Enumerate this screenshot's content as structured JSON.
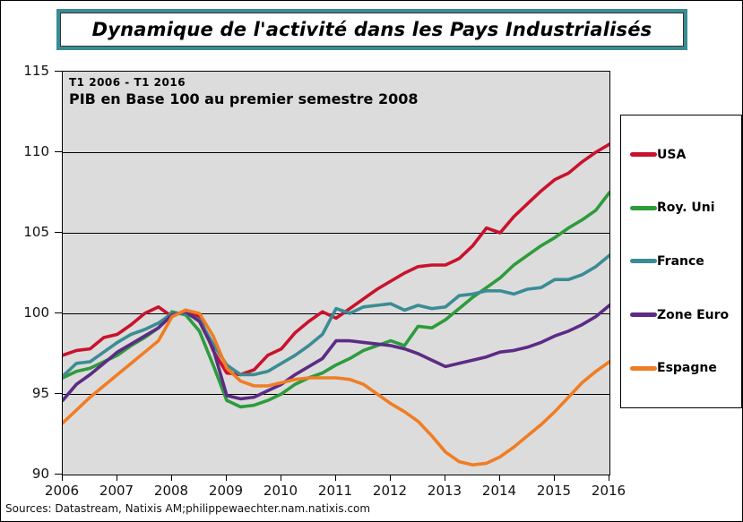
{
  "header": {
    "title": "Dynamique de l'activité dans les Pays Industrialisés"
  },
  "annotation": {
    "line1": "T1 2006 - T1 2016",
    "line2": "PIB en Base 100 au premier semestre 2008"
  },
  "source": "Sources: Datastream, Natixis AM;philippewaechter.nam.natixis.com",
  "colors": {
    "plot_background": "#dcdcdc",
    "gridline": "#000000",
    "title_border": "#3a8c94"
  },
  "chart_data": {
    "type": "line",
    "title": "Dynamique de l'activité dans les Pays Industrialisés",
    "subtitle": "PIB en Base 100 au premier semestre 2008",
    "period": "T1 2006 - T1 2016",
    "x_start": 2006.0,
    "x_step": 0.25,
    "xlim": [
      2006,
      2016
    ],
    "ylim": [
      90,
      115
    ],
    "xticks": [
      2006,
      2007,
      2008,
      2009,
      2010,
      2011,
      2012,
      2013,
      2014,
      2015,
      2016
    ],
    "yticks": [
      90,
      95,
      100,
      105,
      110,
      115
    ],
    "grid_values": [
      95,
      100,
      105,
      110
    ],
    "grid": "horizontal",
    "legend_position": "right",
    "series": [
      {
        "name": "USA",
        "color": "#c9122d",
        "values": [
          97.4,
          97.7,
          97.8,
          98.5,
          98.7,
          99.3,
          100.0,
          100.4,
          99.8,
          100.2,
          99.8,
          97.7,
          96.3,
          96.2,
          96.5,
          97.4,
          97.8,
          98.8,
          99.5,
          100.1,
          99.7,
          100.3,
          100.9,
          101.5,
          102.0,
          102.5,
          102.9,
          103.0,
          103.0,
          103.4,
          104.2,
          105.3,
          105.0,
          106.0,
          106.8,
          107.6,
          108.3,
          108.7,
          109.4,
          110.0,
          110.5
        ]
      },
      {
        "name": "Roy. Uni",
        "color": "#2e9b3c",
        "values": [
          96.0,
          96.4,
          96.6,
          97.0,
          97.4,
          98.0,
          98.5,
          99.1,
          100.1,
          99.9,
          98.9,
          96.8,
          94.6,
          94.2,
          94.3,
          94.6,
          95.0,
          95.6,
          96.0,
          96.3,
          96.8,
          97.2,
          97.7,
          98.0,
          98.3,
          98.0,
          99.2,
          99.1,
          99.6,
          100.3,
          101.0,
          101.6,
          102.2,
          103.0,
          103.6,
          104.2,
          104.7,
          105.3,
          105.8,
          106.4,
          107.5
        ]
      },
      {
        "name": "France",
        "color": "#3b8c94",
        "values": [
          96.1,
          96.9,
          97.0,
          97.6,
          98.2,
          98.7,
          99.0,
          99.4,
          100.0,
          100.0,
          99.6,
          98.1,
          96.8,
          96.2,
          96.2,
          96.4,
          96.9,
          97.4,
          98.0,
          98.7,
          100.3,
          100.0,
          100.4,
          100.5,
          100.6,
          100.2,
          100.5,
          100.3,
          100.4,
          101.1,
          101.2,
          101.4,
          101.4,
          101.2,
          101.5,
          101.6,
          102.1,
          102.1,
          102.4,
          102.9,
          103.6
        ]
      },
      {
        "name": "Zone Euro",
        "color": "#5c2b85",
        "values": [
          94.6,
          95.6,
          96.2,
          96.9,
          97.6,
          98.1,
          98.6,
          99.1,
          99.9,
          100.1,
          99.5,
          97.8,
          94.9,
          94.7,
          94.8,
          95.2,
          95.6,
          96.2,
          96.7,
          97.2,
          98.3,
          98.3,
          98.2,
          98.1,
          98.0,
          97.8,
          97.5,
          97.1,
          96.7,
          96.9,
          97.1,
          97.3,
          97.6,
          97.7,
          97.9,
          98.2,
          98.6,
          98.9,
          99.3,
          99.8,
          100.5
        ]
      },
      {
        "name": "Espagne",
        "color": "#f07d24",
        "values": [
          93.2,
          94.0,
          94.8,
          95.5,
          96.2,
          96.9,
          97.6,
          98.3,
          99.8,
          100.2,
          100.0,
          98.6,
          96.6,
          95.8,
          95.5,
          95.5,
          95.7,
          95.9,
          96.0,
          96.0,
          96.0,
          95.9,
          95.6,
          95.0,
          94.4,
          93.9,
          93.3,
          92.4,
          91.4,
          90.8,
          90.6,
          90.7,
          91.1,
          91.7,
          92.4,
          93.1,
          93.9,
          94.8,
          95.7,
          96.4,
          97.0
        ]
      }
    ]
  }
}
